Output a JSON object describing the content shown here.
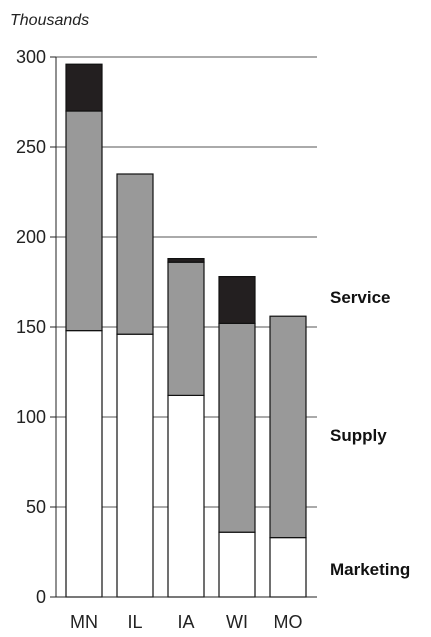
{
  "chart_data": {
    "type": "bar",
    "stacked": true,
    "unit_label": "Thousands",
    "categories": [
      "MN",
      "IL",
      "IA",
      "WI",
      "MO"
    ],
    "series": [
      {
        "name": "Marketing",
        "values": [
          148,
          146,
          112,
          36,
          33
        ],
        "color": "#ffffff"
      },
      {
        "name": "Supply",
        "values": [
          122,
          89,
          74,
          116,
          123
        ],
        "color": "#999999"
      },
      {
        "name": "Service",
        "values": [
          26,
          0,
          2,
          26,
          0
        ],
        "color": "#231f20"
      }
    ],
    "ylim": [
      0,
      300
    ],
    "yticks": [
      0,
      50,
      100,
      150,
      200,
      250,
      300
    ],
    "grid": true,
    "legend_position": "right"
  }
}
